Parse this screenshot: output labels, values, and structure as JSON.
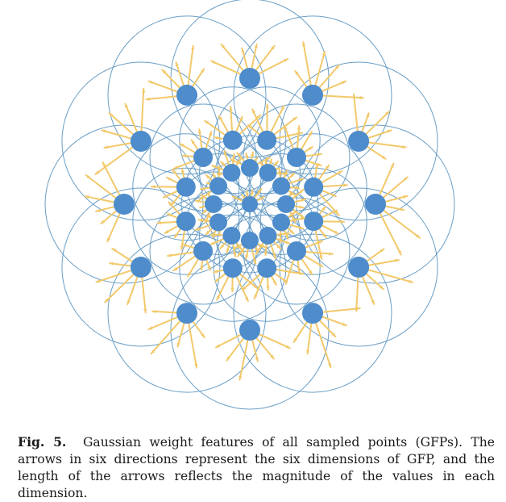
{
  "figure": {
    "colors": {
      "circle": "#6a9ec6",
      "point": "#4e8ccb",
      "arrow": "#f2c96a"
    },
    "arrow_directions": 6
  },
  "caption": {
    "label": "Fig. 5.",
    "text": "Gaussian weight features of all sampled points (GFPs). The arrows in six directions represent the six dimensions of GFP, and the length of the arrows reflects the magnitude of the values in each dimension."
  }
}
